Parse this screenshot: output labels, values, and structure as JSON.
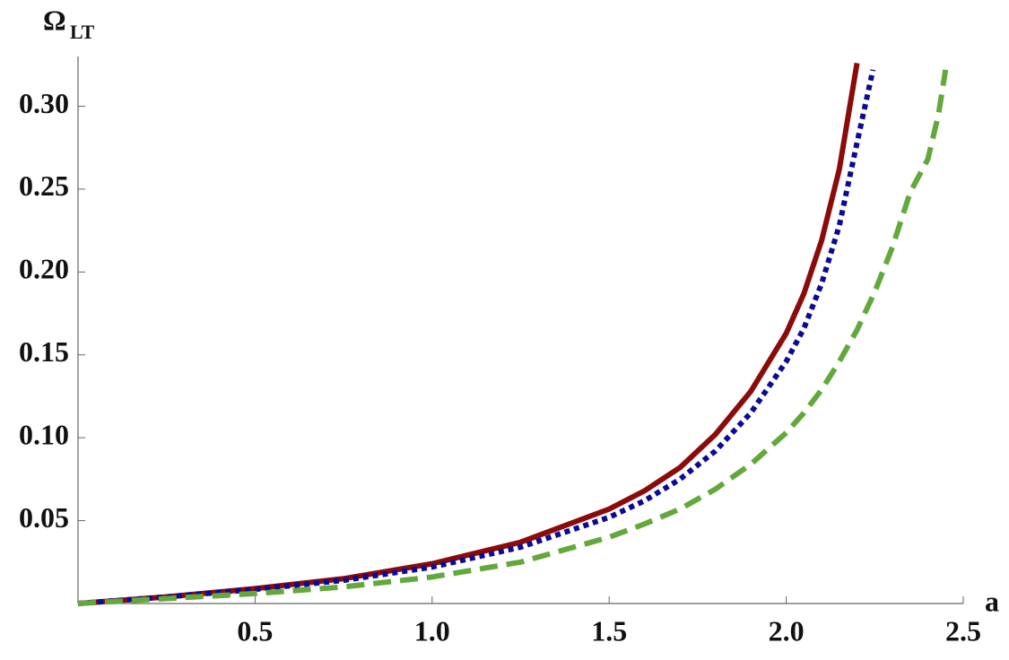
{
  "chart_data": {
    "type": "line",
    "ylabel": "Ω",
    "ylabel_subscript": "LT",
    "xlabel": "a",
    "xlim": [
      0,
      2.5
    ],
    "ylim": [
      0,
      0.33
    ],
    "xticks": [
      0.5,
      {
        "value": 1.0,
        "label": "1.0"
      },
      1.5,
      {
        "value": 2.0,
        "label": "2.0"
      },
      2.5
    ],
    "yticks": [
      0.05,
      {
        "value": 0.1,
        "label": "0.10"
      },
      0.15,
      {
        "value": 0.2,
        "label": "0.20"
      },
      0.25,
      {
        "value": 0.3,
        "label": "0.30"
      }
    ],
    "series": [
      {
        "color": "#8b0a0a",
        "dash": "solid",
        "x": [
          0,
          0.25,
          0.5,
          0.75,
          1.0,
          1.25,
          1.5,
          1.6,
          1.7,
          1.8,
          1.9,
          2.0,
          2.05,
          2.1,
          2.15,
          2.2
        ],
        "values": [
          0,
          0.004,
          0.009,
          0.015,
          0.024,
          0.037,
          0.057,
          0.068,
          0.082,
          0.102,
          0.128,
          0.163,
          0.187,
          0.219,
          0.262,
          0.326
        ]
      },
      {
        "color": "#0a0a96",
        "dash": "dotted",
        "x": [
          0,
          0.25,
          0.5,
          0.75,
          1.0,
          1.25,
          1.5,
          1.6,
          1.7,
          1.8,
          1.9,
          2.0,
          2.05,
          2.1,
          2.15,
          2.2,
          2.245
        ],
        "values": [
          0,
          0.004,
          0.0085,
          0.014,
          0.022,
          0.034,
          0.052,
          0.062,
          0.075,
          0.092,
          0.115,
          0.146,
          0.166,
          0.193,
          0.228,
          0.278,
          0.322
        ]
      },
      {
        "color": "#62a83a",
        "dash": "dashed",
        "x": [
          0,
          0.25,
          0.5,
          0.75,
          1.0,
          1.25,
          1.5,
          1.6,
          1.7,
          1.8,
          1.9,
          2.0,
          2.05,
          2.1,
          2.15,
          2.2,
          2.25,
          2.3,
          2.35,
          2.4,
          2.43,
          2.45
        ],
        "values": [
          0,
          0.003,
          0.006,
          0.01,
          0.016,
          0.025,
          0.04,
          0.048,
          0.057,
          0.069,
          0.084,
          0.103,
          0.115,
          0.129,
          0.146,
          0.165,
          0.188,
          0.215,
          0.248,
          0.268,
          0.295,
          0.322
        ]
      }
    ]
  }
}
